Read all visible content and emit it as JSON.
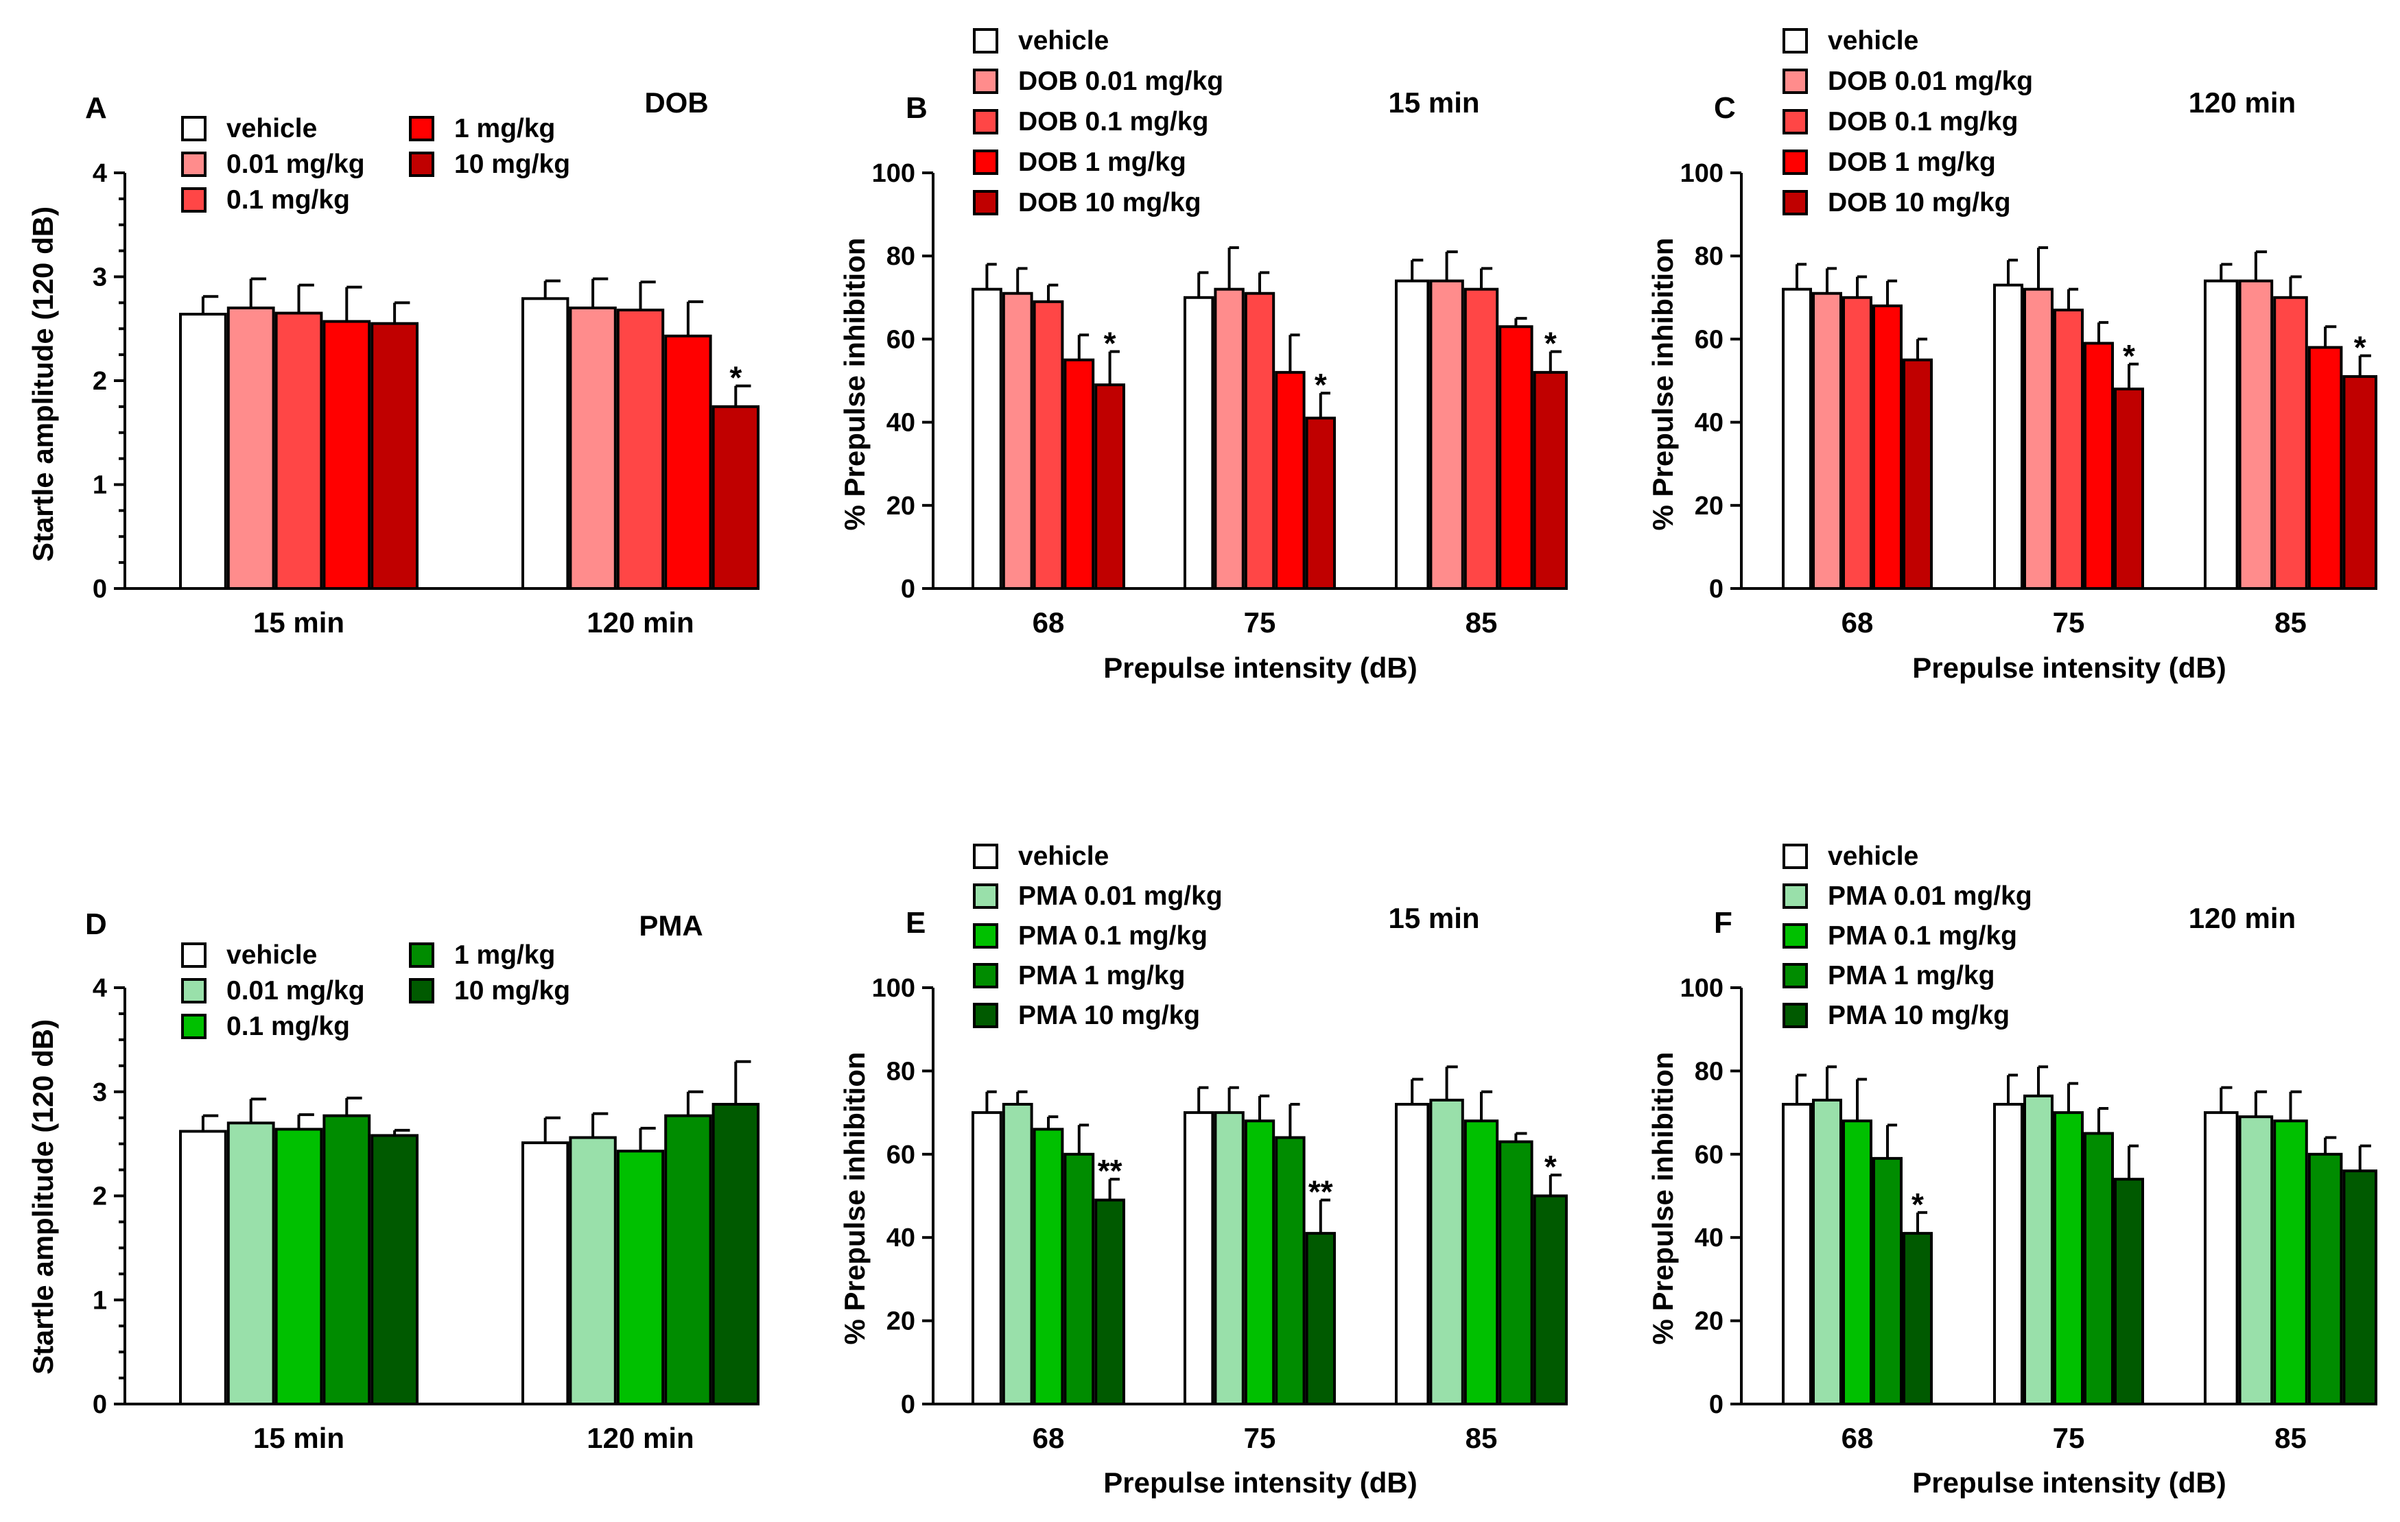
{
  "chart_data": [
    {
      "id": "A",
      "panel_label": "A",
      "title": "DOB",
      "type": "bar",
      "ylabel": "Startle amplitude (120 dB)",
      "xlabel": "",
      "ylim": [
        0,
        4
      ],
      "yticks": [
        0,
        1,
        2,
        3,
        4
      ],
      "minor_yticks": true,
      "categories": [
        "15 min",
        "120 min"
      ],
      "colors": [
        "#ffffff",
        "#ff8c8c",
        "#ff4646",
        "#ff0000",
        "#c00000"
      ],
      "series": [
        {
          "name": "vehicle",
          "values": [
            2.64,
            2.79
          ],
          "errors": [
            0.17,
            0.17
          ],
          "sig": [
            "",
            ""
          ]
        },
        {
          "name": "0.01 mg/kg",
          "values": [
            2.7,
            2.7
          ],
          "errors": [
            0.28,
            0.28
          ],
          "sig": [
            "",
            ""
          ]
        },
        {
          "name": "0.1 mg/kg",
          "values": [
            2.65,
            2.68
          ],
          "errors": [
            0.27,
            0.27
          ],
          "sig": [
            "",
            ""
          ]
        },
        {
          "name": "1 mg/kg",
          "values": [
            2.57,
            2.43
          ],
          "errors": [
            0.33,
            0.33
          ],
          "sig": [
            "",
            ""
          ]
        },
        {
          "name": "10 mg/kg",
          "values": [
            2.55,
            1.75
          ],
          "errors": [
            0.2,
            0.2
          ],
          "sig": [
            "",
            "*"
          ]
        }
      ]
    },
    {
      "id": "B",
      "panel_label": "B",
      "title": "15 min",
      "type": "bar",
      "ylabel": "% Prepulse inhibition",
      "xlabel": "Prepulse intensity (dB)",
      "ylim": [
        0,
        100
      ],
      "yticks": [
        0,
        20,
        40,
        60,
        80,
        100
      ],
      "minor_yticks": false,
      "categories": [
        "68",
        "75",
        "85"
      ],
      "colors": [
        "#ffffff",
        "#ff8c8c",
        "#ff4646",
        "#ff0000",
        "#c00000"
      ],
      "series": [
        {
          "name": "vehicle",
          "values": [
            72,
            70,
            74
          ],
          "errors": [
            6,
            6,
            5
          ],
          "sig": [
            "",
            "",
            ""
          ]
        },
        {
          "name": "DOB 0.01 mg/kg",
          "values": [
            71,
            72,
            74
          ],
          "errors": [
            6,
            10,
            7
          ],
          "sig": [
            "",
            "",
            ""
          ]
        },
        {
          "name": "DOB 0.1 mg/kg",
          "values": [
            69,
            71,
            72
          ],
          "errors": [
            4,
            5,
            5
          ],
          "sig": [
            "",
            "",
            ""
          ]
        },
        {
          "name": "DOB 1 mg/kg",
          "values": [
            55,
            52,
            63
          ],
          "errors": [
            6,
            9,
            2
          ],
          "sig": [
            "",
            "",
            ""
          ]
        },
        {
          "name": "DOB 10 mg/kg",
          "values": [
            49,
            41,
            52
          ],
          "errors": [
            8,
            6,
            5
          ],
          "sig": [
            "*",
            "*",
            "*"
          ]
        }
      ]
    },
    {
      "id": "C",
      "panel_label": "C",
      "title": "120 min",
      "type": "bar",
      "ylabel": "% Prepulse inhibition",
      "xlabel": "Prepulse intensity (dB)",
      "ylim": [
        0,
        100
      ],
      "yticks": [
        0,
        20,
        40,
        60,
        80,
        100
      ],
      "minor_yticks": false,
      "categories": [
        "68",
        "75",
        "85"
      ],
      "colors": [
        "#ffffff",
        "#ff8c8c",
        "#ff4646",
        "#ff0000",
        "#c00000"
      ],
      "series": [
        {
          "name": "vehicle",
          "values": [
            72,
            73,
            74
          ],
          "errors": [
            6,
            6,
            4
          ],
          "sig": [
            "",
            "",
            ""
          ]
        },
        {
          "name": "DOB 0.01 mg/kg",
          "values": [
            71,
            72,
            74
          ],
          "errors": [
            6,
            10,
            7
          ],
          "sig": [
            "",
            "",
            ""
          ]
        },
        {
          "name": "DOB 0.1 mg/kg",
          "values": [
            70,
            67,
            70
          ],
          "errors": [
            5,
            5,
            5
          ],
          "sig": [
            "",
            "",
            ""
          ]
        },
        {
          "name": "DOB 1 mg/kg",
          "values": [
            68,
            59,
            58
          ],
          "errors": [
            6,
            5,
            5
          ],
          "sig": [
            "",
            "",
            ""
          ]
        },
        {
          "name": "DOB 10 mg/kg",
          "values": [
            55,
            48,
            51
          ],
          "errors": [
            5,
            6,
            5
          ],
          "sig": [
            "",
            "*",
            "*"
          ]
        }
      ]
    },
    {
      "id": "D",
      "panel_label": "D",
      "title": "PMA",
      "type": "bar",
      "ylabel": "Startle amplitude (120 dB)",
      "xlabel": "",
      "ylim": [
        0,
        4
      ],
      "yticks": [
        0,
        1,
        2,
        3,
        4
      ],
      "minor_yticks": true,
      "categories": [
        "15 min",
        "120 min"
      ],
      "colors": [
        "#ffffff",
        "#99e0aa",
        "#00c000",
        "#008c00",
        "#005a00"
      ],
      "series": [
        {
          "name": "vehicle",
          "values": [
            2.62,
            2.51
          ],
          "errors": [
            0.15,
            0.24
          ],
          "sig": [
            "",
            ""
          ]
        },
        {
          "name": "0.01 mg/kg",
          "values": [
            2.7,
            2.56
          ],
          "errors": [
            0.23,
            0.23
          ],
          "sig": [
            "",
            ""
          ]
        },
        {
          "name": "0.1 mg/kg",
          "values": [
            2.64,
            2.43
          ],
          "errors": [
            0.14,
            0.22
          ],
          "sig": [
            "",
            ""
          ]
        },
        {
          "name": "1 mg/kg",
          "values": [
            2.77,
            2.77
          ],
          "errors": [
            0.17,
            0.23
          ],
          "sig": [
            "",
            ""
          ]
        },
        {
          "name": "10 mg/kg",
          "values": [
            2.58,
            2.88
          ],
          "errors": [
            0.05,
            0.41
          ],
          "sig": [
            "",
            ""
          ]
        }
      ]
    },
    {
      "id": "E",
      "panel_label": "E",
      "title": "15 min",
      "type": "bar",
      "ylabel": "% Prepulse inhibition",
      "xlabel": "Prepulse intensity (dB)",
      "ylim": [
        0,
        100
      ],
      "yticks": [
        0,
        20,
        40,
        60,
        80,
        100
      ],
      "minor_yticks": false,
      "categories": [
        "68",
        "75",
        "85"
      ],
      "colors": [
        "#ffffff",
        "#99e0aa",
        "#00c000",
        "#008c00",
        "#005a00"
      ],
      "series": [
        {
          "name": "vehicle",
          "values": [
            70,
            70,
            72
          ],
          "errors": [
            5,
            6,
            6
          ],
          "sig": [
            "",
            "",
            ""
          ]
        },
        {
          "name": "PMA 0.01 mg/kg",
          "values": [
            72,
            70,
            73
          ],
          "errors": [
            3,
            6,
            8
          ],
          "sig": [
            "",
            "",
            ""
          ]
        },
        {
          "name": "PMA 0.1 mg/kg",
          "values": [
            66,
            68,
            68
          ],
          "errors": [
            3,
            6,
            7
          ],
          "sig": [
            "",
            "",
            ""
          ]
        },
        {
          "name": "PMA 1 mg/kg",
          "values": [
            60,
            64,
            63
          ],
          "errors": [
            7,
            8,
            2
          ],
          "sig": [
            "",
            "",
            ""
          ]
        },
        {
          "name": "PMA 10 mg/kg",
          "values": [
            49,
            41,
            50
          ],
          "errors": [
            5,
            8,
            5
          ],
          "sig": [
            "**",
            "**",
            "*"
          ]
        }
      ]
    },
    {
      "id": "F",
      "panel_label": "F",
      "title": "120 min",
      "type": "bar",
      "ylabel": "% Prepulse inhibition",
      "xlabel": "Prepulse intensity (dB)",
      "ylim": [
        0,
        100
      ],
      "yticks": [
        0,
        20,
        40,
        60,
        80,
        100
      ],
      "minor_yticks": false,
      "categories": [
        "68",
        "75",
        "85"
      ],
      "colors": [
        "#ffffff",
        "#99e0aa",
        "#00c000",
        "#008c00",
        "#005a00"
      ],
      "series": [
        {
          "name": "vehicle",
          "values": [
            72,
            72,
            70
          ],
          "errors": [
            7,
            7,
            6
          ],
          "sig": [
            "",
            "",
            ""
          ]
        },
        {
          "name": "PMA 0.01 mg/kg",
          "values": [
            73,
            74,
            69
          ],
          "errors": [
            8,
            7,
            6
          ],
          "sig": [
            "",
            "",
            ""
          ]
        },
        {
          "name": "PMA 0.1 mg/kg",
          "values": [
            68,
            70,
            68
          ],
          "errors": [
            10,
            7,
            7
          ],
          "sig": [
            "",
            "",
            ""
          ]
        },
        {
          "name": "PMA 1 mg/kg",
          "values": [
            59,
            65,
            60
          ],
          "errors": [
            8,
            6,
            4
          ],
          "sig": [
            "",
            "",
            ""
          ]
        },
        {
          "name": "PMA 10 mg/kg",
          "values": [
            41,
            54,
            56
          ],
          "errors": [
            5,
            8,
            6
          ],
          "sig": [
            "*",
            "",
            ""
          ]
        }
      ]
    }
  ]
}
